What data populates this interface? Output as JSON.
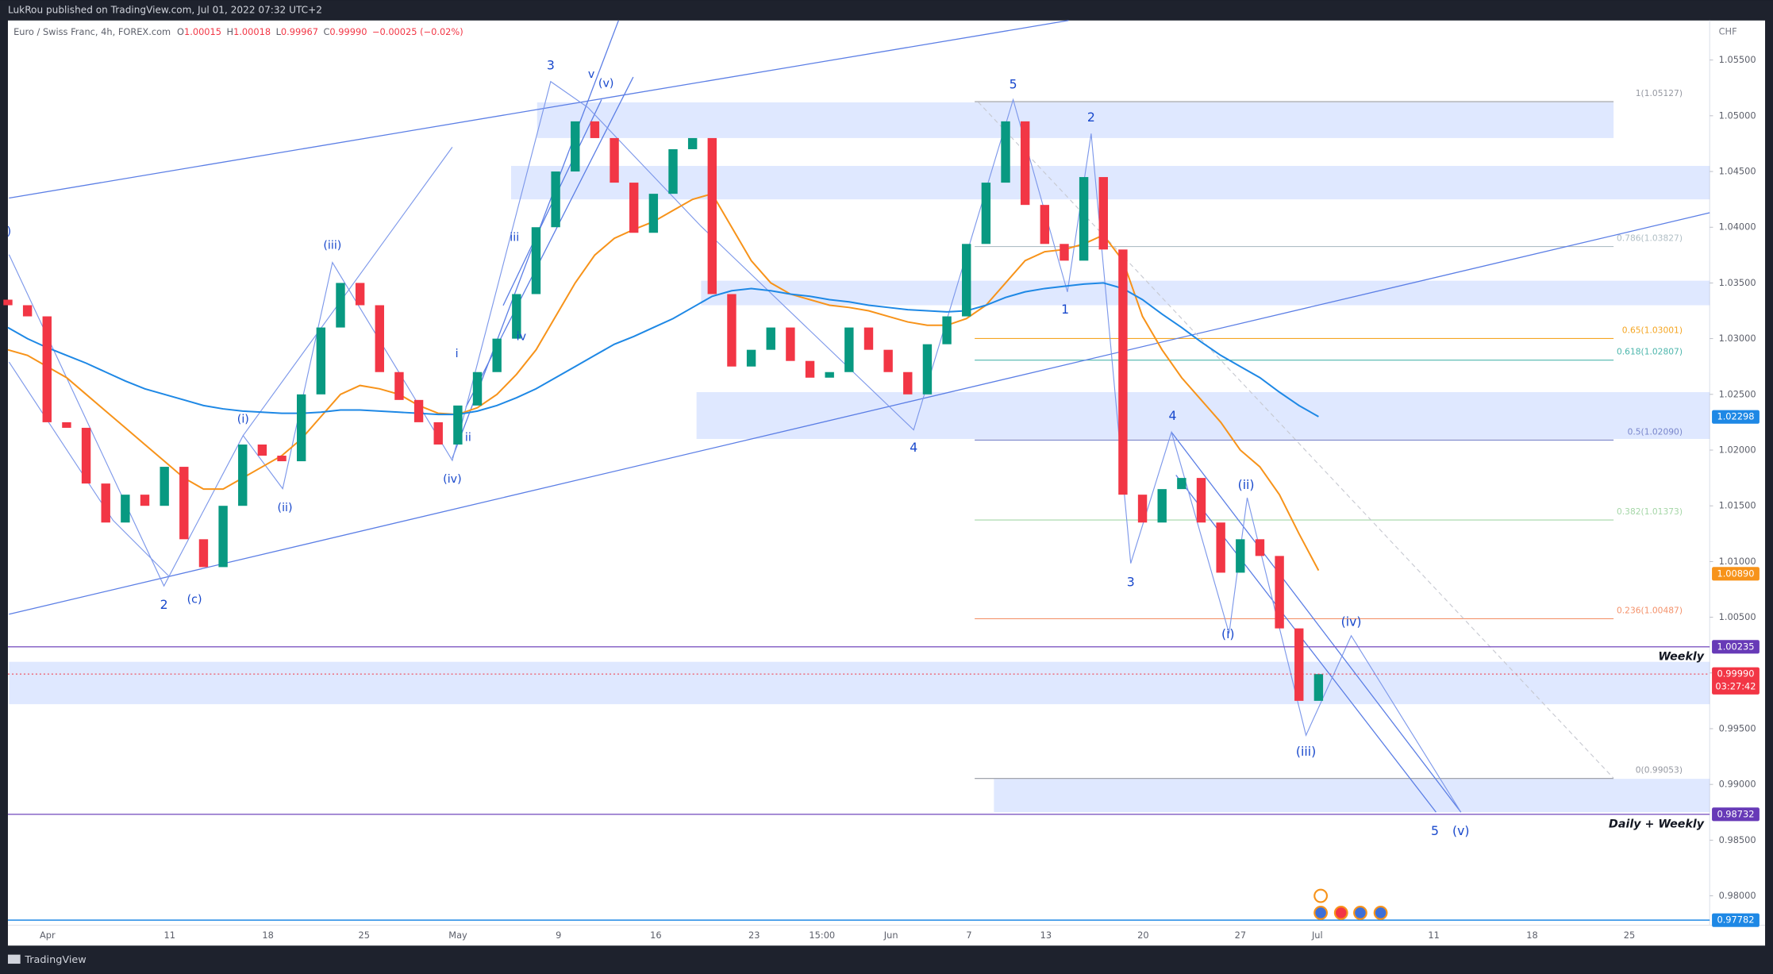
{
  "header": {
    "publisher": "LukRou published on TradingView.com, Jul 01, 2022 07:32 UTC+2"
  },
  "symbol": {
    "name": "Euro / Swiss Franc, 4h, FOREX.com",
    "o_label": "O",
    "o": "1.00015",
    "h_label": "H",
    "h": "1.00018",
    "l_label": "L",
    "l": "0.99967",
    "c_label": "C",
    "c": "0.99990",
    "change": "−0.00025 (−0.02%)"
  },
  "axis_unit": "CHF",
  "yticks": [
    {
      "value": 1.055,
      "label": "1.05500"
    },
    {
      "value": 1.05,
      "label": "1.05000"
    },
    {
      "value": 1.045,
      "label": "1.04500"
    },
    {
      "value": 1.04,
      "label": "1.04000"
    },
    {
      "value": 1.035,
      "label": "1.03500"
    },
    {
      "value": 1.03,
      "label": "1.03000"
    },
    {
      "value": 1.025,
      "label": "1.02500"
    },
    {
      "value": 1.02,
      "label": "1.02000"
    },
    {
      "value": 1.015,
      "label": "1.01500"
    },
    {
      "value": 1.01,
      "label": "1.01000"
    },
    {
      "value": 1.005,
      "label": "1.00500"
    },
    {
      "value": 1.0,
      "label": "1.00000"
    },
    {
      "value": 0.995,
      "label": "0.99500"
    },
    {
      "value": 0.99,
      "label": "0.99000"
    },
    {
      "value": 0.985,
      "label": "0.98500"
    },
    {
      "value": 0.98,
      "label": "0.98000"
    }
  ],
  "time_axis": [
    "Apr",
    "11",
    "18",
    "25",
    "May",
    "9",
    "16",
    "23",
    "15:00",
    "Jun",
    "7",
    "13",
    "20",
    "27",
    "Jul",
    "11",
    "18",
    "25"
  ],
  "price_action": {
    "first_open": 1.0335,
    "closes": [
      1.033,
      1.032,
      1.0225,
      1.022,
      1.017,
      1.0135,
      1.016,
      1.015,
      1.0185,
      1.012,
      1.0095,
      1.015,
      1.0205,
      1.0195,
      1.019,
      1.025,
      1.031,
      1.035,
      1.033,
      1.027,
      1.0245,
      1.0225,
      1.0205,
      1.024,
      1.027,
      1.03,
      1.034,
      1.04,
      1.045,
      1.0495,
      1.048,
      1.044,
      1.0395,
      1.043,
      1.047,
      1.048,
      1.034,
      1.0275,
      1.029,
      1.031,
      1.028,
      1.0265,
      1.027,
      1.031,
      1.029,
      1.027,
      1.025,
      1.0295,
      1.032,
      1.0385,
      1.044,
      1.0495,
      1.042,
      1.0385,
      1.037,
      1.0445,
      1.038,
      1.016,
      1.0135,
      1.0165,
      1.0175,
      1.0135,
      1.009,
      1.012,
      1.0105,
      1.004,
      0.9975,
      0.9999
    ],
    "up_color": "#089981",
    "down_color": "#f23645"
  },
  "moving_averages": [
    {
      "color": "#f7931a",
      "values": [
        1.029,
        1.0285,
        1.0275,
        1.0265,
        1.025,
        1.0235,
        1.022,
        1.0205,
        1.019,
        1.0175,
        1.0165,
        1.0165,
        1.0175,
        1.0185,
        1.0195,
        1.021,
        1.023,
        1.025,
        1.0258,
        1.0255,
        1.025,
        1.024,
        1.0233,
        1.0232,
        1.0238,
        1.025,
        1.0268,
        1.029,
        1.032,
        1.035,
        1.0375,
        1.039,
        1.0398,
        1.0405,
        1.0415,
        1.0425,
        1.043,
        1.04,
        1.037,
        1.035,
        1.034,
        1.0335,
        1.033,
        1.0328,
        1.0325,
        1.032,
        1.0315,
        1.0312,
        1.0312,
        1.0318,
        1.033,
        1.035,
        1.037,
        1.0378,
        1.038,
        1.0385,
        1.0393,
        1.037,
        1.032,
        1.029,
        1.0265,
        1.0245,
        1.0225,
        1.02,
        1.0185,
        1.016,
        1.0125,
        1.0092
      ]
    },
    {
      "color": "#1e88e5",
      "values": [
        1.031,
        1.03,
        1.0292,
        1.0285,
        1.0278,
        1.027,
        1.0262,
        1.0255,
        1.025,
        1.0245,
        1.024,
        1.0237,
        1.0235,
        1.0234,
        1.0233,
        1.0233,
        1.0234,
        1.0236,
        1.0236,
        1.0235,
        1.0234,
        1.0233,
        1.0232,
        1.0232,
        1.0235,
        1.024,
        1.0247,
        1.0255,
        1.0265,
        1.0275,
        1.0285,
        1.0295,
        1.0302,
        1.031,
        1.0318,
        1.0328,
        1.0338,
        1.0343,
        1.0345,
        1.0343,
        1.034,
        1.0338,
        1.0335,
        1.0333,
        1.033,
        1.0328,
        1.0326,
        1.0325,
        1.0324,
        1.0325,
        1.033,
        1.0337,
        1.0342,
        1.0345,
        1.0347,
        1.0349,
        1.035,
        1.0345,
        1.0335,
        1.0322,
        1.031,
        1.0297,
        1.0285,
        1.0275,
        1.0265,
        1.0252,
        1.024,
        1.023
      ]
    }
  ],
  "zones": [
    {
      "top": 1.0512,
      "bottom": 1.048
    },
    {
      "top": 1.0455,
      "bottom": 1.0425
    },
    {
      "top": 1.0352,
      "bottom": 1.033
    },
    {
      "top": 1.0252,
      "bottom": 1.021
    },
    {
      "top": 1.001,
      "bottom": 0.9972
    },
    {
      "top": 0.9905,
      "bottom": 0.9875
    }
  ],
  "fib_levels": [
    {
      "value": 1.05127,
      "label": "1(1.05127)",
      "color": "#9598a1"
    },
    {
      "value": 1.03827,
      "label": "0.786(1.03827)",
      "color": "#b0bec5"
    },
    {
      "value": 1.03001,
      "label": "0.65(1.03001)",
      "color": "#f5a623"
    },
    {
      "value": 1.02807,
      "label": "0.618(1.02807)",
      "color": "#4db6ac"
    },
    {
      "value": 1.0209,
      "label": "0.5(1.02090)",
      "color": "#7986cb"
    },
    {
      "value": 1.01373,
      "label": "0.382(1.01373)",
      "color": "#a5d6a7"
    },
    {
      "value": 1.00487,
      "label": "0.236(1.00487)",
      "color": "#f4926b"
    },
    {
      "value": 0.99053,
      "label": "0(0.99053)",
      "color": "#9598a1"
    }
  ],
  "levels": [
    {
      "value": 1.00235,
      "label": "Weekly",
      "color": "#7e57c2"
    },
    {
      "value": 0.98732,
      "label": "Daily + Weekly",
      "color": "#7e57c2"
    }
  ],
  "price_tags": [
    {
      "value": 1.02298,
      "label": "1.02298",
      "color": "#1e88e5"
    },
    {
      "value": 1.0089,
      "label": "1.00890",
      "color": "#f7931a"
    },
    {
      "value": 1.00235,
      "label": "1.00235",
      "color": "#673ab7"
    },
    {
      "value": 0.9999,
      "label": "0.99990",
      "color": "#f23645",
      "countdown": "03:27:42"
    },
    {
      "value": 0.98732,
      "label": "0.98732",
      "color": "#673ab7"
    },
    {
      "value": 0.97782,
      "label": "0.97782",
      "color": "#1e88e5",
      "line": true
    }
  ],
  "wave_labels": [
    ")",
    "2",
    "(c)",
    "(i)",
    "(ii)",
    "(iii)",
    "(iv)",
    "i",
    "ii",
    "iii",
    "iv",
    "3",
    "v",
    "(v)",
    "4",
    "5",
    "2",
    "1",
    "3",
    "4",
    "(ii)",
    "(i)",
    "(iv)",
    "(iii)",
    "5",
    "(v)"
  ],
  "footer": {
    "brand": "TradingView"
  }
}
